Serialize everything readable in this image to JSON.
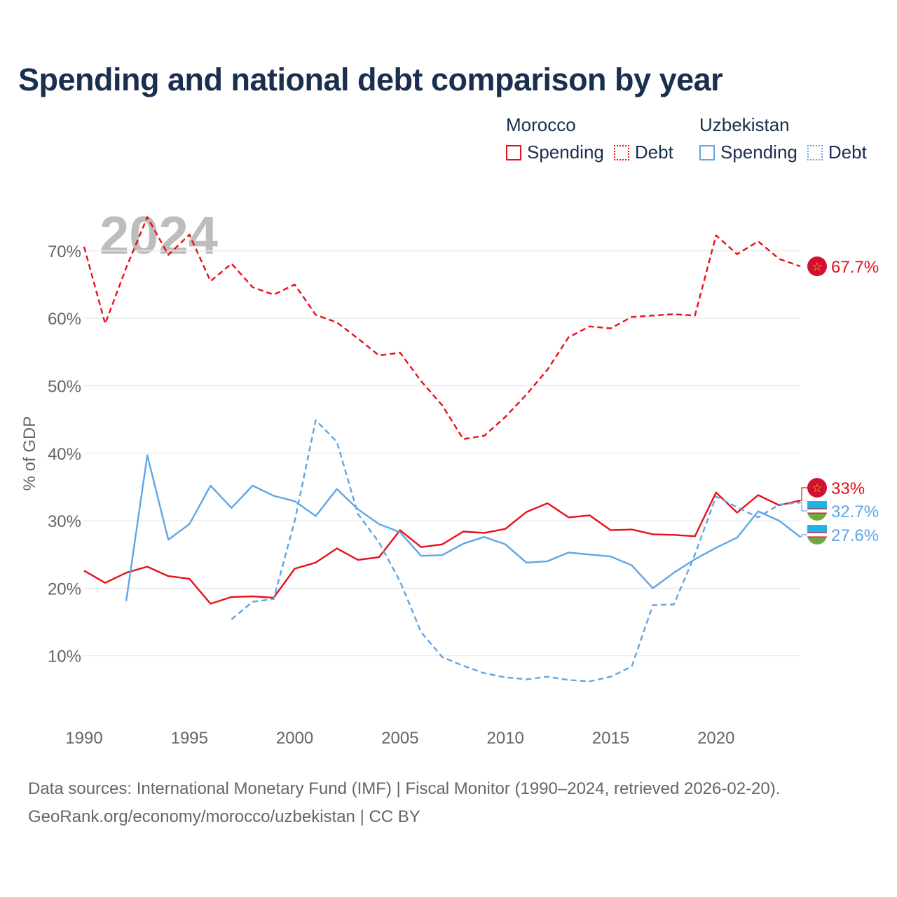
{
  "title": "Spending and national debt comparison by year",
  "legend": {
    "groups": [
      {
        "country": "Morocco",
        "color": "#e8101a",
        "items": [
          {
            "label": "Spending",
            "style": "solid"
          },
          {
            "label": "Debt",
            "style": "dotted"
          }
        ]
      },
      {
        "country": "Uzbekistan",
        "color": "#5ea6e6",
        "items": [
          {
            "label": "Spending",
            "style": "solid"
          },
          {
            "label": "Debt",
            "style": "dotted"
          }
        ]
      }
    ]
  },
  "source": {
    "line1": "Data sources: International Monetary Fund (IMF) | Fiscal Monitor (1990–2024, retrieved 2026-02-20).",
    "line2": "GeoRank.org/economy/morocco/uzbekistan | CC BY"
  },
  "chart_data": {
    "type": "line",
    "year_watermark": "2024",
    "ylabel": "% of GDP",
    "xlabel": "",
    "xlim": [
      1990,
      2024
    ],
    "ylim": [
      0,
      77
    ],
    "x_ticks": [
      1990,
      1995,
      2000,
      2005,
      2010,
      2015,
      2020
    ],
    "x_tick_labels": [
      "1990",
      "1995",
      "2000",
      "2005",
      "2010",
      "2015",
      "2020"
    ],
    "y_ticks": [
      10,
      20,
      30,
      40,
      50,
      60,
      70
    ],
    "y_tick_labels": [
      "10%",
      "20%",
      "30%",
      "40%",
      "50%",
      "60%",
      "70%"
    ],
    "grid": true,
    "series": [
      {
        "name": "Morocco Debt",
        "country": "Morocco",
        "measure": "Debt",
        "color": "#e8101a",
        "style": "dashed",
        "x": [
          1990,
          1991,
          1992,
          1993,
          1994,
          1995,
          1996,
          1997,
          1998,
          1999,
          2000,
          2001,
          2002,
          2003,
          2004,
          2005,
          2006,
          2007,
          2008,
          2009,
          2010,
          2011,
          2012,
          2013,
          2014,
          2015,
          2016,
          2017,
          2018,
          2019,
          2020,
          2021,
          2022,
          2023,
          2024
        ],
        "values": [
          70.6,
          59.2,
          67.5,
          75.0,
          69.4,
          72.4,
          65.5,
          68.1,
          64.6,
          63.5,
          65.0,
          60.5,
          59.4,
          57.0,
          54.5,
          54.9,
          50.7,
          47.1,
          42.1,
          42.6,
          45.4,
          48.7,
          52.4,
          57.2,
          58.8,
          58.5,
          60.2,
          60.4,
          60.6,
          60.4,
          72.3,
          69.5,
          71.4,
          68.8,
          67.7
        ],
        "end_label": "67.7%"
      },
      {
        "name": "Morocco Spending",
        "country": "Morocco",
        "measure": "Spending",
        "color": "#e8101a",
        "style": "solid",
        "x": [
          1990,
          1991,
          1992,
          1993,
          1994,
          1995,
          1996,
          1997,
          1998,
          1999,
          2000,
          2001,
          2002,
          2003,
          2004,
          2005,
          2006,
          2007,
          2008,
          2009,
          2010,
          2011,
          2012,
          2013,
          2014,
          2015,
          2016,
          2017,
          2018,
          2019,
          2020,
          2021,
          2022,
          2023,
          2024
        ],
        "values": [
          22.6,
          20.8,
          22.3,
          23.2,
          21.8,
          21.4,
          17.7,
          18.7,
          18.8,
          18.6,
          22.9,
          23.8,
          25.9,
          24.2,
          24.6,
          28.6,
          26.1,
          26.5,
          28.4,
          28.2,
          28.8,
          31.3,
          32.6,
          30.5,
          30.8,
          28.6,
          28.7,
          28.0,
          27.9,
          27.7,
          34.2,
          31.2,
          33.8,
          32.3,
          33.0
        ],
        "end_label": "33%"
      },
      {
        "name": "Uzbekistan Spending",
        "country": "Uzbekistan",
        "measure": "Spending",
        "color": "#5ea6e6",
        "style": "solid",
        "x": [
          1992,
          1993,
          1994,
          1995,
          1996,
          1997,
          1998,
          1999,
          2000,
          2001,
          2002,
          2003,
          2004,
          2005,
          2006,
          2007,
          2008,
          2009,
          2010,
          2011,
          2012,
          2013,
          2014,
          2015,
          2016,
          2017,
          2018,
          2019,
          2020,
          2021,
          2022,
          2023,
          2024
        ],
        "values": [
          18.1,
          39.7,
          27.2,
          29.5,
          35.2,
          31.9,
          35.2,
          33.7,
          32.9,
          30.7,
          34.7,
          31.7,
          29.5,
          28.3,
          24.8,
          24.9,
          26.6,
          27.6,
          26.5,
          23.8,
          24.0,
          25.3,
          25.0,
          24.7,
          23.4,
          20.0,
          22.3,
          24.3,
          26.0,
          27.5,
          31.4,
          30.0,
          27.6
        ],
        "end_label": "27.6%"
      },
      {
        "name": "Uzbekistan Debt",
        "country": "Uzbekistan",
        "measure": "Debt",
        "color": "#5ea6e6",
        "style": "dashed",
        "x": [
          1997,
          1998,
          1999,
          2000,
          2001,
          2002,
          2003,
          2004,
          2005,
          2006,
          2007,
          2008,
          2009,
          2010,
          2011,
          2012,
          2013,
          2014,
          2015,
          2016,
          2017,
          2018,
          2019,
          2020,
          2021,
          2022,
          2023,
          2024
        ],
        "values": [
          15.4,
          18.0,
          18.4,
          30.0,
          44.9,
          41.7,
          31.0,
          26.8,
          21.0,
          13.5,
          9.8,
          8.5,
          7.4,
          6.8,
          6.5,
          6.9,
          6.4,
          6.2,
          6.9,
          8.4,
          17.5,
          17.6,
          25.0,
          33.6,
          32.0,
          30.5,
          32.4,
          32.7
        ],
        "end_label": "32.7%"
      }
    ]
  }
}
